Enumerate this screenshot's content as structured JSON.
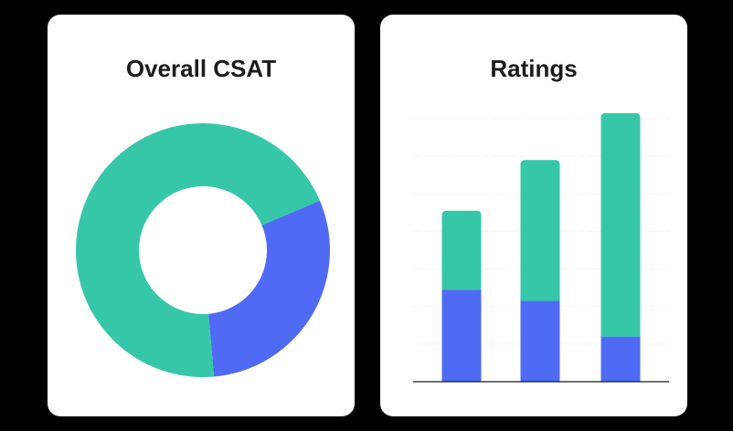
{
  "colors": {
    "teal": "#36c7a9",
    "blue": "#4f6bf5",
    "grid": "#e6e6e6",
    "axis": "#1a1a1a",
    "hole": "#ffffff"
  },
  "chart_data": [
    {
      "type": "pie",
      "variant": "donut",
      "title": "Overall CSAT",
      "slices": [
        {
          "color": "#4f6bf5",
          "value": 30
        },
        {
          "color": "#36c7a9",
          "value": 70
        }
      ]
    },
    {
      "type": "bar",
      "stacked": true,
      "title": "Ratings",
      "categories": [
        "",
        "",
        ""
      ],
      "ylim": [
        0,
        7
      ],
      "grid": true,
      "series": [
        {
          "color": "#4f6bf5",
          "values": [
            2.45,
            2.15,
            1.2
          ]
        },
        {
          "color": "#36c7a9",
          "values": [
            2.1,
            3.75,
            5.95
          ]
        }
      ]
    }
  ]
}
